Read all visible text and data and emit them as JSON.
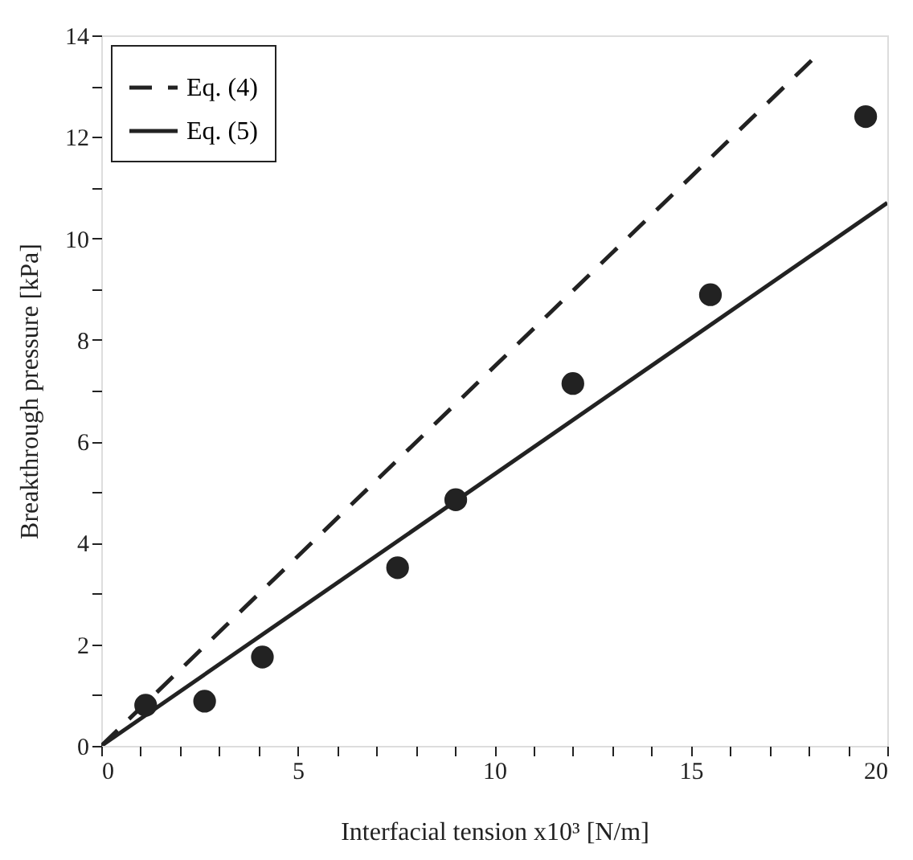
{
  "chart_data": {
    "type": "scatter",
    "xlabel": "Interfacial tension  x10³ [N/m]",
    "ylabel": "Breakthrough pressure  [kPa]",
    "xlim": [
      0,
      20
    ],
    "ylim": [
      0,
      14
    ],
    "xticks": [
      0,
      {
        "value": 1,
        "label": null
      },
      {
        "value": 2,
        "label": null
      },
      {
        "value": 3,
        "label": null
      },
      {
        "value": 4,
        "label": null
      },
      5,
      {
        "value": 6,
        "label": null
      },
      {
        "value": 7,
        "label": null
      },
      {
        "value": 8,
        "label": null
      },
      {
        "value": 9,
        "label": null
      },
      10,
      {
        "value": 11,
        "label": null
      },
      {
        "value": 12,
        "label": null
      },
      {
        "value": 13,
        "label": null
      },
      {
        "value": 14,
        "label": null
      },
      15,
      {
        "value": 16,
        "label": null
      },
      {
        "value": 17,
        "label": null
      },
      {
        "value": 18,
        "label": null
      },
      {
        "value": 19,
        "label": null
      },
      20
    ],
    "yticks": [
      0,
      {
        "value": 1,
        "label": null
      },
      2,
      {
        "value": 3,
        "label": null
      },
      4,
      {
        "value": 5,
        "label": null
      },
      6,
      {
        "value": 7,
        "label": null
      },
      8,
      {
        "value": 9,
        "label": null
      },
      10,
      {
        "value": 11,
        "label": null
      },
      12,
      {
        "value": 13,
        "label": null
      },
      14
    ],
    "legend": "top left",
    "grid": false,
    "series": [
      {
        "name": "Eq. (4)",
        "type": "line",
        "line_style": "dashed",
        "color": "#222222",
        "x": [
          0,
          18.2
        ],
        "values": [
          0,
          13.6
        ]
      },
      {
        "name": "Eq. (5)",
        "type": "line",
        "line_style": "solid",
        "color": "#222222",
        "x": [
          0,
          20
        ],
        "values": [
          0,
          10.7
        ]
      },
      {
        "marker": "circle",
        "color": "#222222",
        "x": [
          1.13,
          2.63,
          4.1,
          7.54,
          9.02,
          12.0,
          15.5,
          19.45
        ],
        "values": [
          0.8,
          0.88,
          1.75,
          3.51,
          4.85,
          7.14,
          8.89,
          12.4
        ]
      }
    ]
  }
}
